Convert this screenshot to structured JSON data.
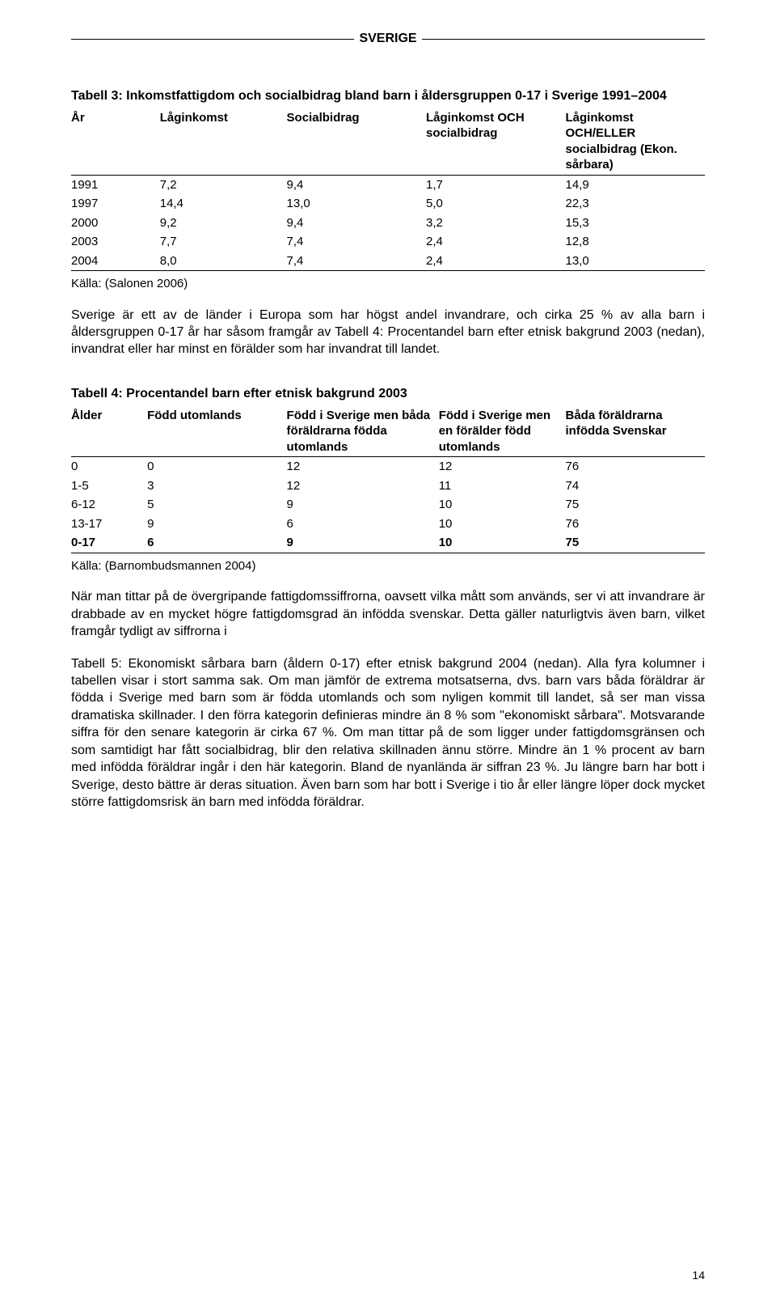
{
  "header": {
    "title": "SVERIGE"
  },
  "table3": {
    "title": "Tabell 3: Inkomstfattigdom och socialbidrag bland barn i åldersgruppen 0-17 i Sverige 1991–2004",
    "columns": [
      "År",
      "Låginkomst",
      "Socialbidrag",
      "Låginkomst OCH socialbidrag",
      "Låginkomst OCH/ELLER socialbidrag (Ekon. sårbara)"
    ],
    "rows": [
      [
        "1991",
        "7,2",
        "9,4",
        "1,7",
        "14,9"
      ],
      [
        "1997",
        "14,4",
        "13,0",
        "5,0",
        "22,3"
      ],
      [
        "2000",
        "9,2",
        "9,4",
        "3,2",
        "15,3"
      ],
      [
        "2003",
        "7,7",
        "7,4",
        "2,4",
        "12,8"
      ],
      [
        "2004",
        "8,0",
        "7,4",
        "2,4",
        "13,0"
      ]
    ],
    "source": "Källa: (Salonen 2006)",
    "col_widths": [
      "14%",
      "20%",
      "22%",
      "22%",
      "22%"
    ]
  },
  "para1": "Sverige är ett av de länder i Europa som har högst andel invandrare, och cirka 25 % av alla barn i åldersgruppen 0-17 år har såsom framgår av Tabell 4: Procentandel barn efter etnisk bakgrund 2003 (nedan), invandrat eller har minst en förälder som har invandrat till landet.",
  "table4": {
    "title": "Tabell 4: Procentandel barn efter etnisk bakgrund 2003",
    "columns": [
      "Ålder",
      "Född utomlands",
      "Född i Sverige men båda föräldrarna födda utomlands",
      "Född i Sverige men en förälder född utomlands",
      "Båda föräldrarna infödda Svenskar"
    ],
    "rows": [
      [
        "0",
        "0",
        "12",
        "12",
        "76"
      ],
      [
        "1-5",
        "3",
        "12",
        "11",
        "74"
      ],
      [
        "6-12",
        "5",
        "9",
        "10",
        "75"
      ],
      [
        "13-17",
        "9",
        "6",
        "10",
        "76"
      ],
      [
        "0-17",
        "6",
        "9",
        "10",
        "75"
      ]
    ],
    "boldLastRow": true,
    "source": "Källa: (Barnombudsmannen 2004)",
    "col_widths": [
      "12%",
      "22%",
      "24%",
      "20%",
      "22%"
    ]
  },
  "para2": "När man tittar på de övergripande fattigdomssiffrorna, oavsett vilka mått som används, ser vi att invandrare är drabbade av en mycket högre fattigdomsgrad än infödda svenskar. Detta gäller naturligtvis även barn, vilket framgår tydligt av siffrorna i",
  "para3": "Tabell 5: Ekonomiskt sårbara barn (åldern 0-17) efter etnisk bakgrund 2004 (nedan). Alla fyra kolumner i tabellen visar i stort samma sak. Om man jämför de extrema motsatserna, dvs. barn vars båda föräldrar är födda i Sverige med barn som är födda utomlands och som nyligen kommit till landet, så ser man vissa dramatiska skillnader. I den förra kategorin definieras mindre än 8 % som \"ekonomiskt sårbara\". Motsvarande siffra för den senare kategorin är cirka 67 %. Om man tittar på de som ligger under fattigdomsgränsen och som samtidigt har fått socialbidrag, blir den relativa skillnaden ännu större. Mindre än 1 % procent av barn med infödda föräldrar ingår i den här kategorin. Bland de nyanlända är siffran 23 %. Ju längre barn har bott i Sverige, desto bättre är deras situation. Även barn som har bott i Sverige i tio år eller längre löper dock mycket större fattigdomsrisk än barn med infödda föräldrar.",
  "pageNumber": "14"
}
